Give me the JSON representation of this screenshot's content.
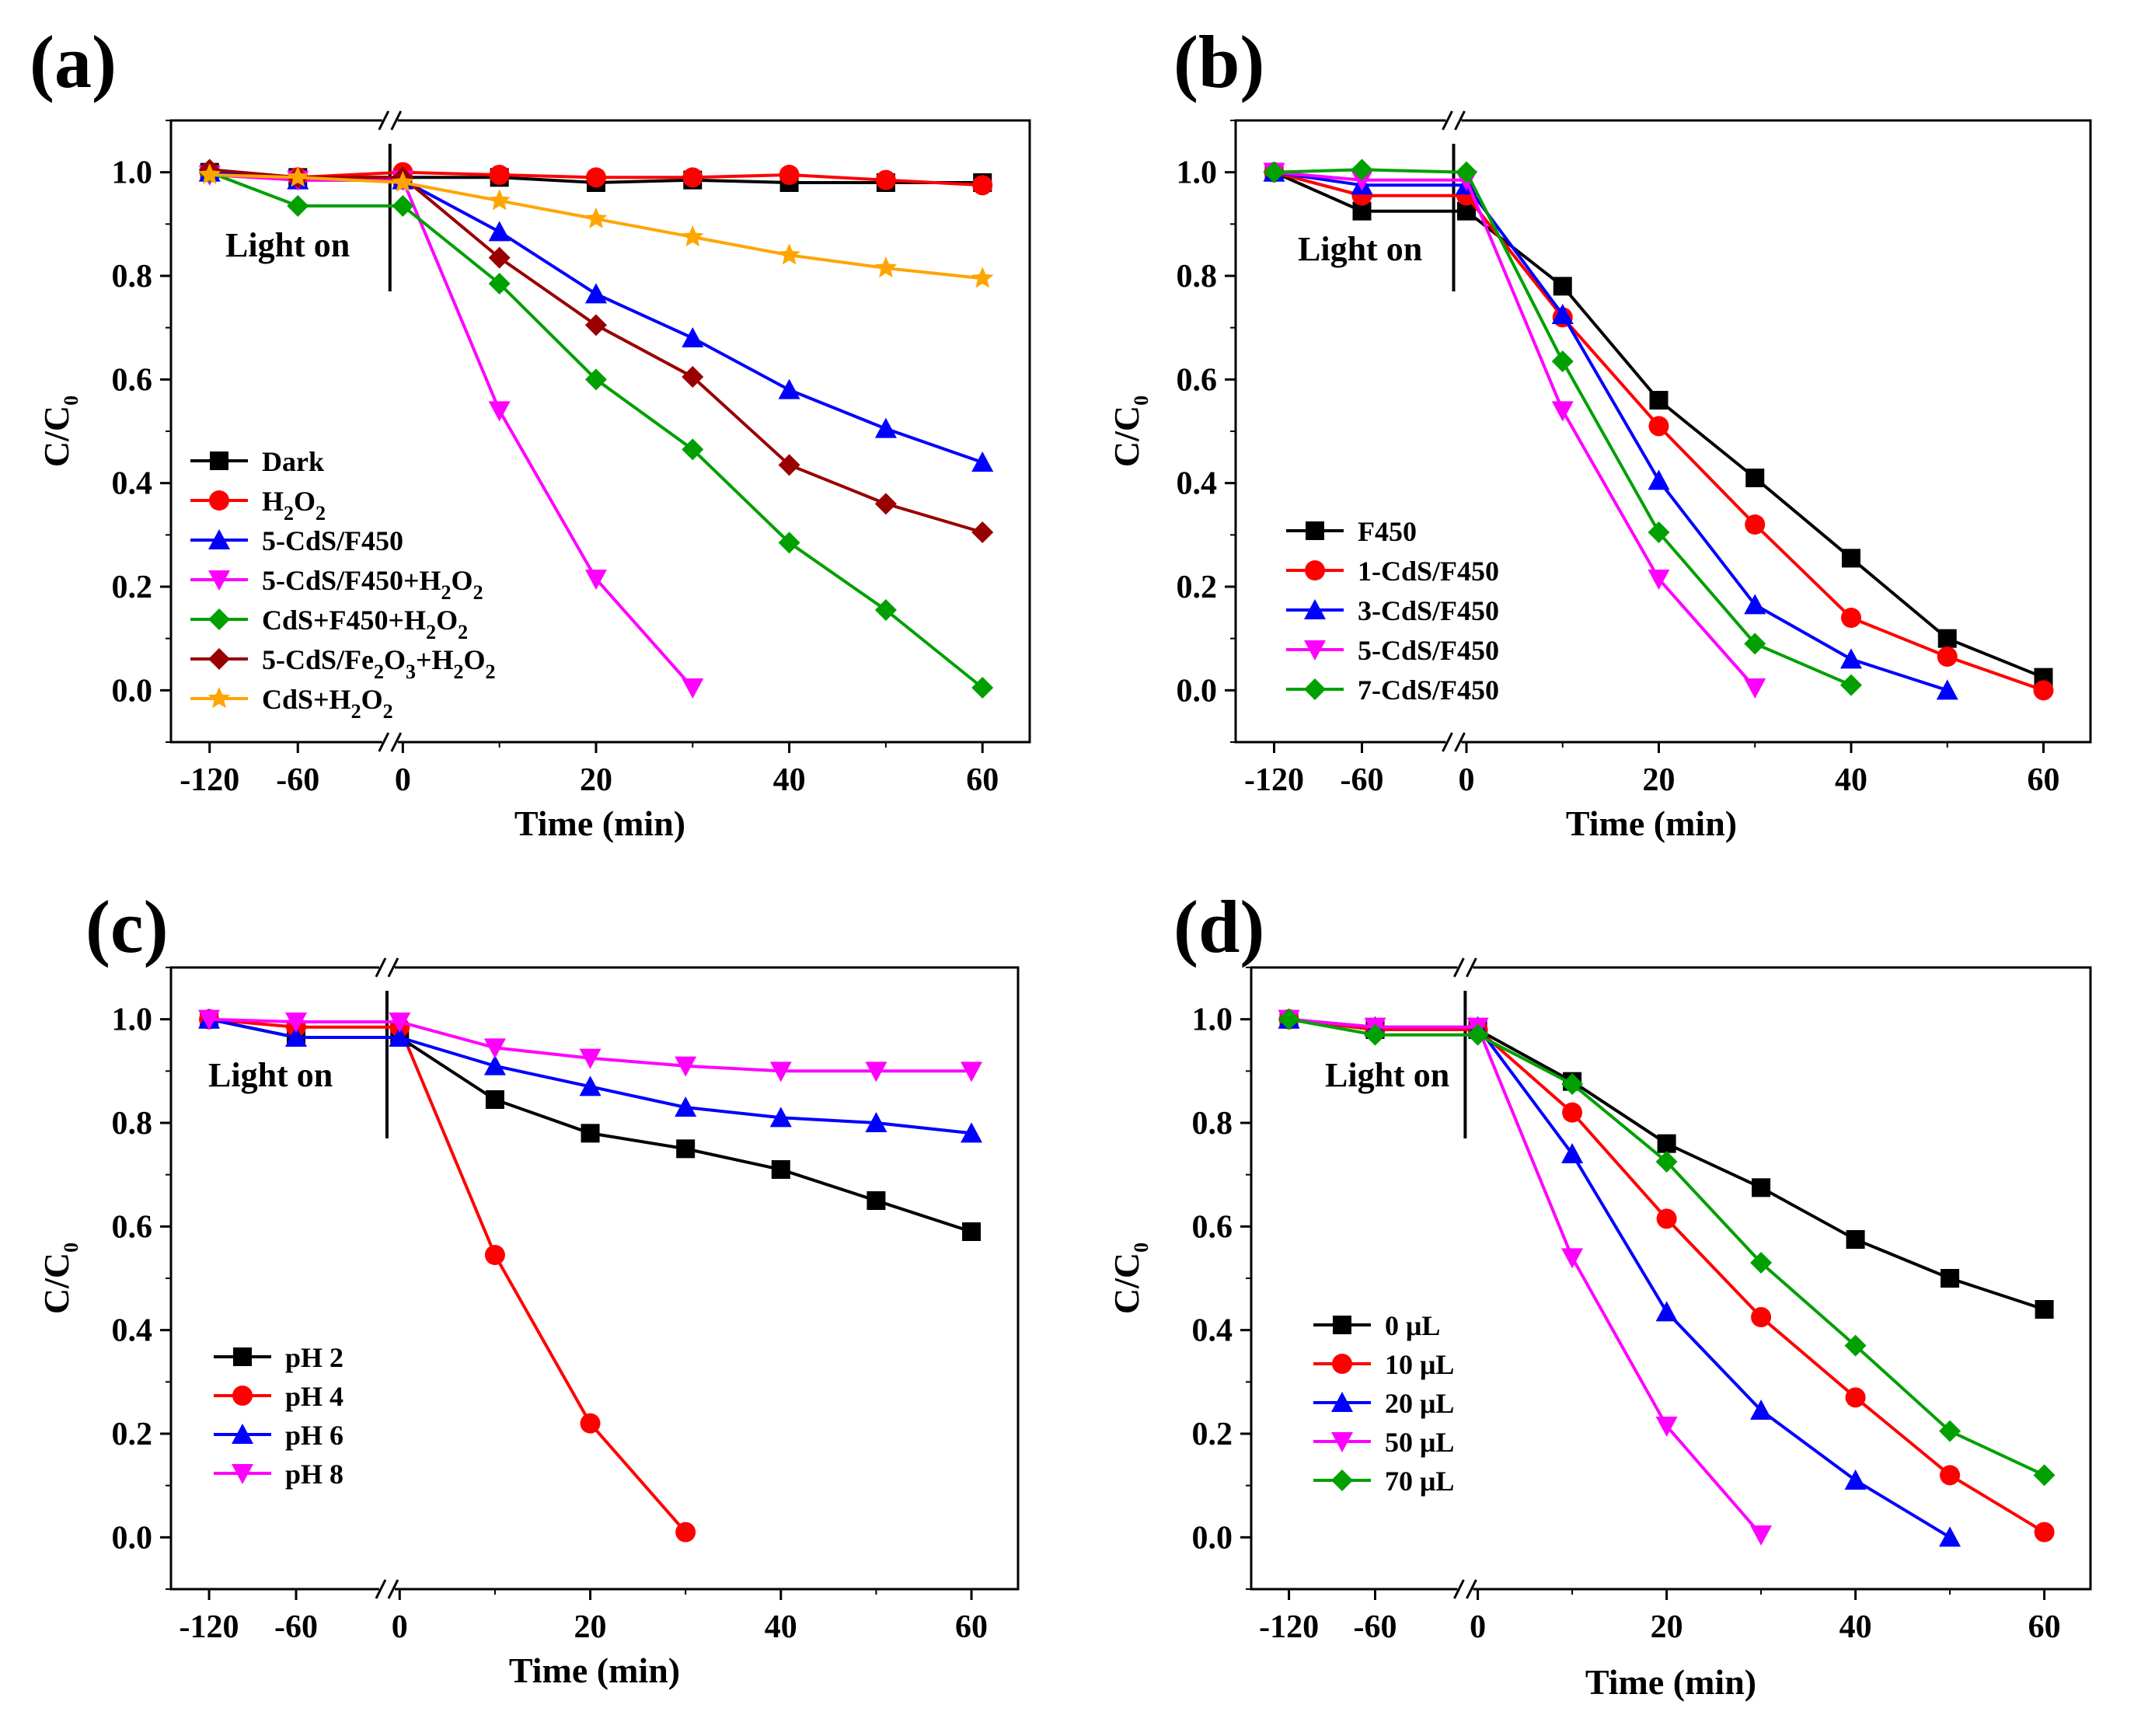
{
  "chart_data": [
    {
      "type": "line",
      "panel_label": "(a)",
      "xlabel": "Time (min)",
      "ylabel": "C/C0",
      "annotation": "Light on",
      "ylim": [
        -0.1,
        1.1
      ],
      "yticks": [
        0.0,
        0.2,
        0.4,
        0.6,
        0.8,
        1.0
      ],
      "xticks": [
        -120,
        -60,
        0,
        20,
        40,
        60
      ],
      "series": [
        {
          "name": "Dark",
          "name_parts": [
            [
              "Dark",
              "n"
            ]
          ],
          "color": "#000000",
          "marker": "square",
          "x": [
            -120,
            -60,
            0,
            10,
            20,
            30,
            40,
            50,
            60
          ],
          "y": [
            1.0,
            0.99,
            0.99,
            0.99,
            0.98,
            0.985,
            0.98,
            0.98,
            0.98
          ]
        },
        {
          "name": "H2O2",
          "name_parts": [
            [
              "H",
              "n"
            ],
            [
              "2",
              "s"
            ],
            [
              "O",
              "n"
            ],
            [
              "2",
              "s"
            ]
          ],
          "color": "#ff0000",
          "marker": "circle",
          "x": [
            -120,
            -60,
            0,
            10,
            20,
            30,
            40,
            50,
            60
          ],
          "y": [
            1.0,
            0.99,
            1.0,
            0.995,
            0.99,
            0.99,
            0.995,
            0.985,
            0.975
          ]
        },
        {
          "name": "5-CdS/F450",
          "name_parts": [
            [
              "5-CdS/F450",
              "n"
            ]
          ],
          "color": "#0000ff",
          "marker": "triangle-up",
          "x": [
            -120,
            -60,
            0,
            10,
            20,
            30,
            40,
            50,
            60
          ],
          "y": [
            1.0,
            0.985,
            0.985,
            0.885,
            0.765,
            0.68,
            0.58,
            0.505,
            0.44
          ]
        },
        {
          "name": "5-CdS/F450+H2O2",
          "name_parts": [
            [
              "5-CdS/F450+H",
              "n"
            ],
            [
              "2",
              "s"
            ],
            [
              "O",
              "n"
            ],
            [
              "2",
              "s"
            ]
          ],
          "color": "#ff00ff",
          "marker": "triangle-down",
          "x": [
            -120,
            -60,
            0,
            10,
            20,
            30
          ],
          "y": [
            0.995,
            0.985,
            0.985,
            0.54,
            0.215,
            0.005
          ]
        },
        {
          "name": "CdS+F450+H2O2",
          "name_parts": [
            [
              "CdS+F450+H",
              "n"
            ],
            [
              "2",
              "s"
            ],
            [
              "O",
              "n"
            ],
            [
              "2",
              "s"
            ]
          ],
          "color": "#00a000",
          "marker": "diamond",
          "x": [
            -120,
            -60,
            0,
            10,
            20,
            30,
            40,
            50,
            60
          ],
          "y": [
            1.0,
            0.935,
            0.935,
            0.785,
            0.6,
            0.465,
            0.285,
            0.155,
            0.005
          ]
        },
        {
          "name": "5-CdS/Fe2O3+H2O2",
          "name_parts": [
            [
              "5-CdS/Fe",
              "n"
            ],
            [
              "2",
              "s"
            ],
            [
              "O",
              "n"
            ],
            [
              "3",
              "s"
            ],
            [
              "+H",
              "n"
            ],
            [
              "2",
              "s"
            ],
            [
              "O",
              "n"
            ],
            [
              "2",
              "s"
            ]
          ],
          "color": "#990000",
          "marker": "diamond",
          "x": [
            -120,
            -60,
            0,
            10,
            20,
            30,
            40,
            50,
            60
          ],
          "y": [
            1.005,
            0.99,
            0.99,
            0.835,
            0.705,
            0.605,
            0.435,
            0.36,
            0.305
          ]
        },
        {
          "name": "CdS+H2O2",
          "name_parts": [
            [
              "CdS+H",
              "n"
            ],
            [
              "2",
              "s"
            ],
            [
              "O",
              "n"
            ],
            [
              "2",
              "s"
            ]
          ],
          "color": "#ffa500",
          "marker": "star",
          "x": [
            -120,
            -60,
            0,
            10,
            20,
            30,
            40,
            50,
            60
          ],
          "y": [
            0.995,
            0.99,
            0.98,
            0.945,
            0.91,
            0.875,
            0.84,
            0.815,
            0.795
          ]
        }
      ]
    },
    {
      "type": "line",
      "panel_label": "(b)",
      "xlabel": "Time (min)",
      "ylabel": "C/C0",
      "annotation": "Light on",
      "ylim": [
        -0.1,
        1.1
      ],
      "yticks": [
        0.0,
        0.2,
        0.4,
        0.6,
        0.8,
        1.0
      ],
      "xticks": [
        -120,
        -60,
        0,
        20,
        40,
        60
      ],
      "series": [
        {
          "name": "F450",
          "name_parts": [
            [
              "F450",
              "n"
            ]
          ],
          "color": "#000000",
          "marker": "square",
          "x": [
            -120,
            -60,
            0,
            10,
            20,
            30,
            40,
            50,
            60
          ],
          "y": [
            1.0,
            0.925,
            0.925,
            0.78,
            0.56,
            0.41,
            0.255,
            0.1,
            0.025
          ]
        },
        {
          "name": "1-CdS/F450",
          "name_parts": [
            [
              "1-CdS/F450",
              "n"
            ]
          ],
          "color": "#ff0000",
          "marker": "circle",
          "x": [
            -120,
            -60,
            0,
            10,
            20,
            30,
            40,
            50,
            60
          ],
          "y": [
            1.0,
            0.955,
            0.955,
            0.72,
            0.51,
            0.32,
            0.14,
            0.065,
            0.0
          ]
        },
        {
          "name": "3-CdS/F450",
          "name_parts": [
            [
              "3-CdS/F450",
              "n"
            ]
          ],
          "color": "#0000ff",
          "marker": "triangle-up",
          "x": [
            -120,
            -60,
            0,
            10,
            20,
            30,
            40,
            50
          ],
          "y": [
            1.0,
            0.975,
            0.975,
            0.725,
            0.405,
            0.165,
            0.06,
            0.0
          ]
        },
        {
          "name": "5-CdS/F450",
          "name_parts": [
            [
              "5-CdS/F450",
              "n"
            ]
          ],
          "color": "#ff00ff",
          "marker": "triangle-down",
          "x": [
            -120,
            -60,
            0,
            10,
            20,
            30
          ],
          "y": [
            1.0,
            0.985,
            0.985,
            0.54,
            0.215,
            0.005
          ]
        },
        {
          "name": "7-CdS/F450",
          "name_parts": [
            [
              "7-CdS/F450",
              "n"
            ]
          ],
          "color": "#00a000",
          "marker": "diamond",
          "x": [
            -120,
            -60,
            0,
            10,
            20,
            30,
            40
          ],
          "y": [
            1.0,
            1.005,
            1.0,
            0.635,
            0.305,
            0.09,
            0.01
          ]
        }
      ]
    },
    {
      "type": "line",
      "panel_label": "(c)",
      "xlabel": "Time (min)",
      "ylabel": "C/C0",
      "annotation": "Light on",
      "ylim": [
        -0.1,
        1.1
      ],
      "yticks": [
        0.0,
        0.2,
        0.4,
        0.6,
        0.8,
        1.0
      ],
      "xticks": [
        -120,
        -60,
        0,
        20,
        40,
        60
      ],
      "series": [
        {
          "name": "pH 2",
          "name_parts": [
            [
              "pH 2",
              "n"
            ]
          ],
          "color": "#000000",
          "marker": "square",
          "x": [
            -120,
            -60,
            0,
            10,
            20,
            30,
            40,
            50,
            60
          ],
          "y": [
            1.0,
            0.965,
            0.965,
            0.845,
            0.78,
            0.75,
            0.71,
            0.65,
            0.59
          ]
        },
        {
          "name": "pH 4",
          "name_parts": [
            [
              "pH 4",
              "n"
            ]
          ],
          "color": "#ff0000",
          "marker": "circle",
          "x": [
            -120,
            -60,
            0,
            10,
            20,
            30
          ],
          "y": [
            1.0,
            0.985,
            0.985,
            0.545,
            0.22,
            0.01
          ]
        },
        {
          "name": "pH 6",
          "name_parts": [
            [
              "pH 6",
              "n"
            ]
          ],
          "color": "#0000ff",
          "marker": "triangle-up",
          "x": [
            -120,
            -60,
            0,
            10,
            20,
            30,
            40,
            50,
            60
          ],
          "y": [
            1.0,
            0.965,
            0.965,
            0.91,
            0.87,
            0.83,
            0.81,
            0.8,
            0.78
          ]
        },
        {
          "name": "pH 8",
          "name_parts": [
            [
              "pH 8",
              "n"
            ]
          ],
          "color": "#ff00ff",
          "marker": "triangle-down",
          "x": [
            -120,
            -60,
            0,
            10,
            20,
            30,
            40,
            50,
            60
          ],
          "y": [
            1.0,
            0.995,
            0.995,
            0.945,
            0.925,
            0.91,
            0.9,
            0.9,
            0.9
          ]
        }
      ]
    },
    {
      "type": "line",
      "panel_label": "(d)",
      "xlabel": "Time (min)",
      "ylabel": "C/C0",
      "annotation": "Light on",
      "ylim": [
        -0.1,
        1.1
      ],
      "yticks": [
        0.0,
        0.2,
        0.4,
        0.6,
        0.8,
        1.0
      ],
      "xticks": [
        -120,
        -60,
        0,
        20,
        40,
        60
      ],
      "series": [
        {
          "name": "0 μL",
          "name_parts": [
            [
              "0 μL",
              "n"
            ]
          ],
          "color": "#000000",
          "marker": "square",
          "x": [
            -120,
            -60,
            0,
            10,
            20,
            30,
            40,
            50,
            60
          ],
          "y": [
            1.0,
            0.98,
            0.98,
            0.88,
            0.76,
            0.675,
            0.575,
            0.5,
            0.44
          ]
        },
        {
          "name": "10 μL",
          "name_parts": [
            [
              "10 μL",
              "n"
            ]
          ],
          "color": "#ff0000",
          "marker": "circle",
          "x": [
            -120,
            -60,
            0,
            10,
            20,
            30,
            40,
            50,
            60
          ],
          "y": [
            1.0,
            0.98,
            0.98,
            0.82,
            0.615,
            0.425,
            0.27,
            0.12,
            0.01
          ]
        },
        {
          "name": "20 μL",
          "name_parts": [
            [
              "20 μL",
              "n"
            ]
          ],
          "color": "#0000ff",
          "marker": "triangle-up",
          "x": [
            -120,
            -60,
            0,
            10,
            20,
            30,
            40,
            50
          ],
          "y": [
            1.0,
            0.985,
            0.985,
            0.74,
            0.435,
            0.245,
            0.11,
            0.0
          ]
        },
        {
          "name": "50 μL",
          "name_parts": [
            [
              "50 μL",
              "n"
            ]
          ],
          "color": "#ff00ff",
          "marker": "triangle-down",
          "x": [
            -120,
            -60,
            0,
            10,
            20,
            30
          ],
          "y": [
            1.0,
            0.985,
            0.985,
            0.54,
            0.215,
            0.005
          ]
        },
        {
          "name": "70 μL",
          "name_parts": [
            [
              "70 μL",
              "n"
            ]
          ],
          "color": "#00a000",
          "marker": "diamond",
          "x": [
            -120,
            -60,
            0,
            10,
            20,
            30,
            40,
            50,
            60
          ],
          "y": [
            1.0,
            0.97,
            0.97,
            0.875,
            0.725,
            0.53,
            0.37,
            0.205,
            0.12
          ]
        }
      ]
    }
  ]
}
